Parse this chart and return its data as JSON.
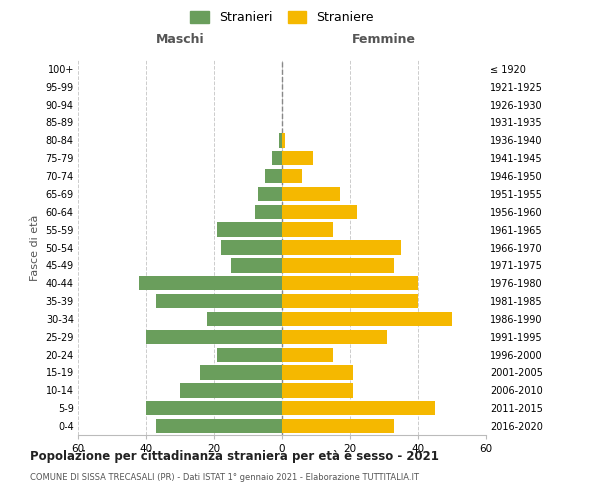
{
  "age_groups": [
    "0-4",
    "5-9",
    "10-14",
    "15-19",
    "20-24",
    "25-29",
    "30-34",
    "35-39",
    "40-44",
    "45-49",
    "50-54",
    "55-59",
    "60-64",
    "65-69",
    "70-74",
    "75-79",
    "80-84",
    "85-89",
    "90-94",
    "95-99",
    "100+"
  ],
  "birth_years": [
    "2016-2020",
    "2011-2015",
    "2006-2010",
    "2001-2005",
    "1996-2000",
    "1991-1995",
    "1986-1990",
    "1981-1985",
    "1976-1980",
    "1971-1975",
    "1966-1970",
    "1961-1965",
    "1956-1960",
    "1951-1955",
    "1946-1950",
    "1941-1945",
    "1936-1940",
    "1931-1935",
    "1926-1930",
    "1921-1925",
    "≤ 1920"
  ],
  "males": [
    37,
    40,
    30,
    24,
    19,
    40,
    22,
    37,
    42,
    15,
    18,
    19,
    8,
    7,
    5,
    3,
    1,
    0,
    0,
    0,
    0
  ],
  "females": [
    33,
    45,
    21,
    21,
    15,
    31,
    50,
    40,
    40,
    33,
    35,
    15,
    22,
    17,
    6,
    9,
    1,
    0,
    0,
    0,
    0
  ],
  "male_color": "#6a9e5c",
  "female_color": "#f5b800",
  "background_color": "#ffffff",
  "grid_color": "#cccccc",
  "title": "Popolazione per cittadinanza straniera per età e sesso - 2021",
  "subtitle": "COMUNE DI SISSA TRECASALI (PR) - Dati ISTAT 1° gennaio 2021 - Elaborazione TUTTITALIA.IT",
  "xlabel_left": "Maschi",
  "xlabel_right": "Femmine",
  "ylabel_left": "Fasce di età",
  "legend_male": "Stranieri",
  "legend_female": "Straniere",
  "xlim": 60,
  "bar_height": 0.8
}
